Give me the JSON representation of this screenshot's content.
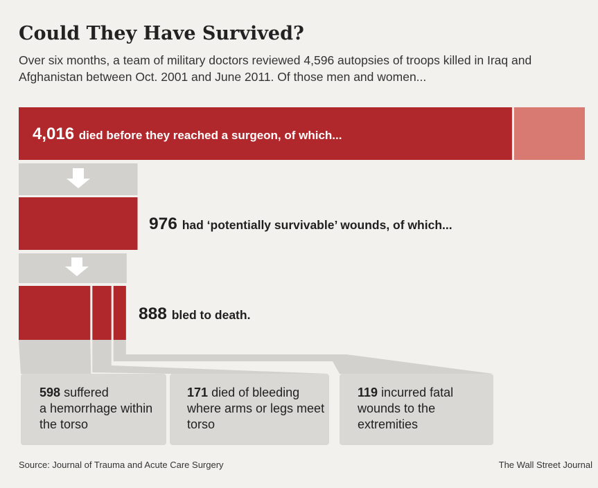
{
  "headline": "Could They Have Survived?",
  "subhead": "Over six months, a team of military doctors reviewed 4,596 autopsies of troops killed in Iraq and Afghanistan between Oct. 2001 and June 2011. Of those men and women...",
  "chart_data": {
    "type": "bar",
    "total": 4596,
    "colors": {
      "primary": "#b0282c",
      "remainder": "#d97a72",
      "connector": "#d2d1ce",
      "breakdown_box": "#d9d8d5",
      "arrow": "#ffffff"
    },
    "levels": [
      {
        "value": 4016,
        "number": "4,016",
        "label": "died before they reached a surgeon, of which..."
      },
      {
        "value": 976,
        "number": "976",
        "label": "had ‘potentially survivable’ wounds, of which..."
      },
      {
        "value": 888,
        "number": "888",
        "label": "bled to death."
      }
    ],
    "breakdown": [
      {
        "value": 598,
        "number": "598",
        "label_line1": "suffered",
        "label_rest": "a hemorrhage within the torso"
      },
      {
        "value": 171,
        "number": "171",
        "label_line1": "died of bleeding",
        "label_rest": "where arms or legs meet torso"
      },
      {
        "value": 119,
        "number": "119",
        "label_line1": "incurred fatal",
        "label_rest": "wounds to the extremities"
      }
    ]
  },
  "footer": {
    "source": "Source: Journal of Trauma and Acute Care Surgery",
    "brand": "The Wall Street Journal"
  }
}
